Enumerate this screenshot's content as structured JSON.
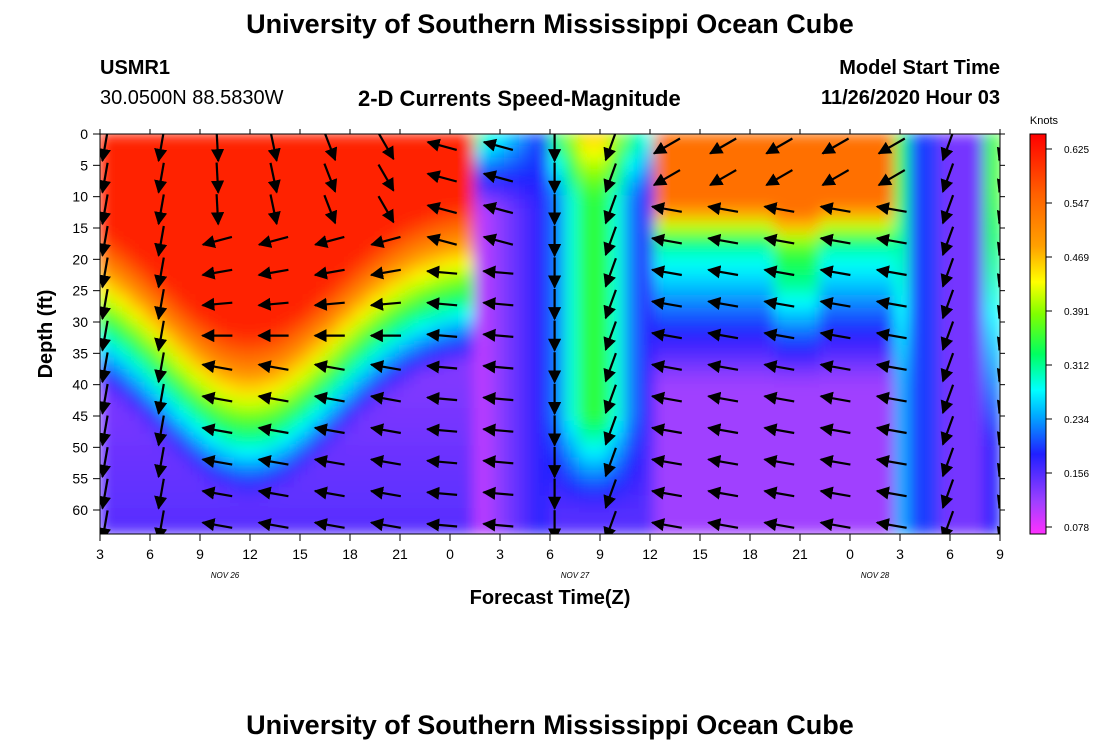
{
  "header": {
    "title": "University of Southern Mississippi Ocean Cube",
    "station": "USMR1",
    "location": "30.0500N 88.5830W",
    "subtitle": "2-D Currents Speed-Magnitude",
    "model_label": "Model Start Time",
    "model_time": "11/26/2020 Hour 03"
  },
  "footer": {
    "title": "University of Southern Mississippi Ocean Cube"
  },
  "chart_data": {
    "type": "heatmap",
    "title": "2-D Currents Speed-Magnitude",
    "xlabel": "Forecast Time(Z)",
    "ylabel": "Depth (ft)",
    "x_tick_labels": [
      "3",
      "6",
      "9",
      "12",
      "15",
      "18",
      "21",
      "0",
      "3",
      "6",
      "9",
      "12",
      "15",
      "18",
      "21",
      "0",
      "3",
      "6",
      "9"
    ],
    "x_date_labels": [
      {
        "label": "NOV  26",
        "at_tick": 3
      },
      {
        "label": "NOV  27",
        "at_tick": 10
      },
      {
        "label": "NOV  28",
        "at_tick": 16
      }
    ],
    "y_tick_labels": [
      "0",
      "5",
      "10",
      "15",
      "20",
      "25",
      "30",
      "35",
      "40",
      "45",
      "50",
      "55",
      "60"
    ],
    "ylim": [
      0,
      64
    ],
    "y_inverted": true,
    "colorbar": {
      "unit": "Knots",
      "ticks": [
        "0.625",
        "0.547",
        "0.469",
        "0.391",
        "0.312",
        "0.234",
        "0.156",
        "0.078"
      ],
      "range": [
        0.05,
        0.65
      ]
    },
    "vector_field": true,
    "grid": false
  }
}
